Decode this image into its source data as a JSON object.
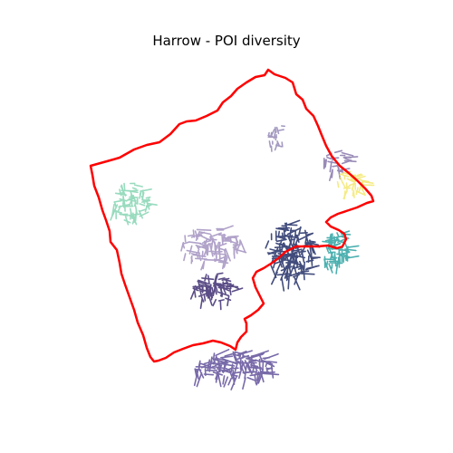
{
  "title": "Harrow - POI diversity",
  "boundary_color": "#ff0000",
  "clusters": [
    {
      "name": "cluster-northeast-small",
      "color": "#9b8fba"
    },
    {
      "name": "cluster-east-upper",
      "color": "#8f7fb0"
    },
    {
      "name": "cluster-east-yellow",
      "color": "#f5e97a"
    },
    {
      "name": "cluster-west-green",
      "color": "#8dd8b8"
    },
    {
      "name": "cluster-center-lavender",
      "color": "#a898c4"
    },
    {
      "name": "cluster-center-navy",
      "color": "#2e3a6e"
    },
    {
      "name": "cluster-east-teal",
      "color": "#3aa8a8"
    },
    {
      "name": "cluster-south-dark",
      "color": "#4a3a7a"
    },
    {
      "name": "cluster-south-purple",
      "color": "#6a5aa0"
    }
  ]
}
